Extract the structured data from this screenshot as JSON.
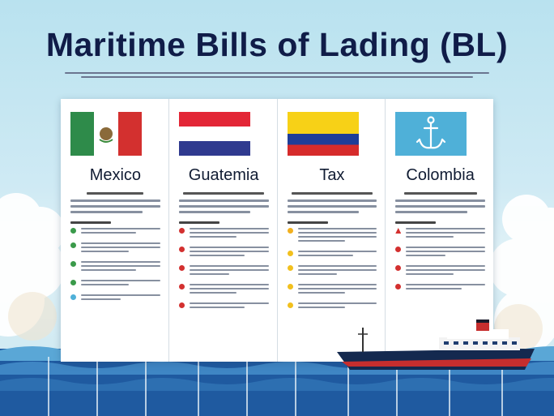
{
  "title": "Maritime Bills of Lading (BL)",
  "colors": {
    "title": "#101c48",
    "mexico_green": "#2e8b4a",
    "mexico_red": "#d3302f",
    "guatemala_red": "#e32636",
    "guatemala_blue": "#2f3a8f",
    "colombia_yellow": "#f7d117",
    "colombia_blue": "#1e3d98",
    "colombia_red": "#d62b2b",
    "anchor_flag": "#4fb0d8"
  },
  "panels": [
    {
      "name": "Mexico",
      "flag": "mexico-flag",
      "bullet_colors": [
        "#3a9a4a",
        "#3a9a4a",
        "#3a9a4a",
        "#3a9a4a",
        "#4fb0d8"
      ]
    },
    {
      "name": "Guatemia",
      "flag": "guatemala-flag",
      "bullet_colors": [
        "#d3302f",
        "#d3302f",
        "#d3302f",
        "#d3302f",
        "#d3302f"
      ]
    },
    {
      "name": "Tax",
      "flag": "colombia-flag",
      "bullet_colors": [
        "#f2b01e",
        "#f2c01e",
        "#f2c01e",
        "#f2c01e",
        "#f2c01e"
      ]
    },
    {
      "name": "Colombia",
      "flag": "anchor-flag",
      "bullet_colors": [
        "#d3302f",
        "#d3302f",
        "#d3302f",
        "#d3302f",
        "#d3302f"
      ]
    }
  ]
}
